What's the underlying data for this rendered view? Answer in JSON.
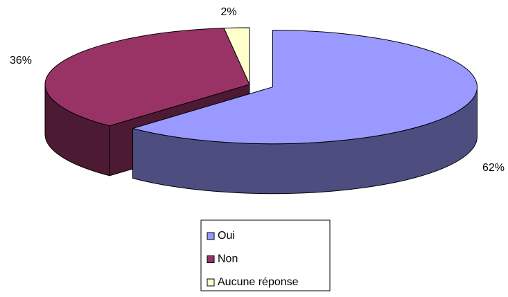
{
  "chart_data": {
    "type": "pie3d",
    "categories": [
      "Oui",
      "Non",
      "Aucune réponse"
    ],
    "values": [
      62,
      36,
      2
    ],
    "value_labels": [
      "62%",
      "36%",
      "2%"
    ],
    "colors": [
      "#9999ff",
      "#993366",
      "#ffffcc"
    ],
    "legend": "bottom"
  }
}
